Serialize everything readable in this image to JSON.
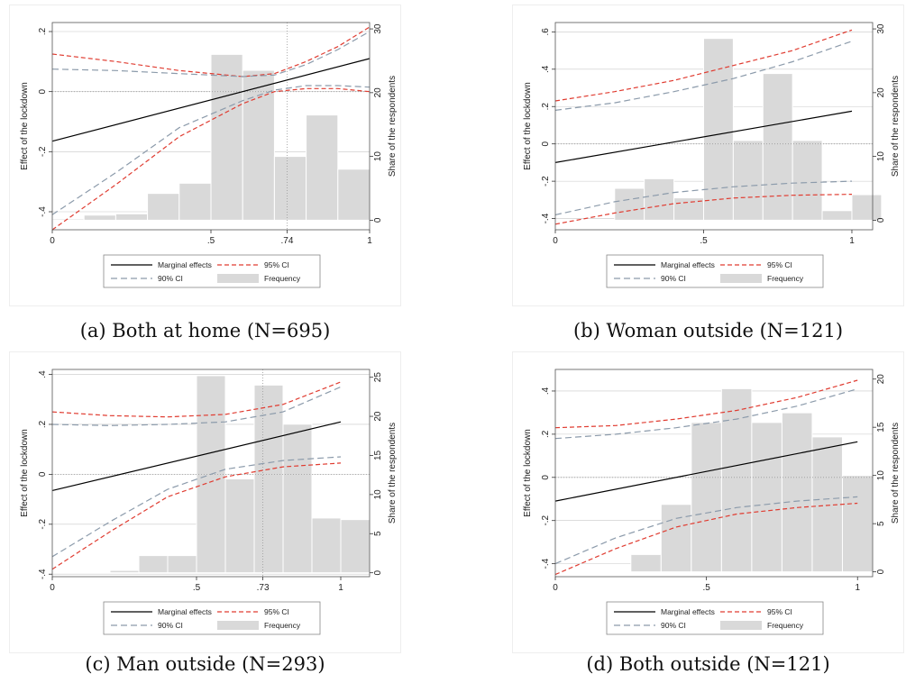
{
  "legend": {
    "marginal": "Marginal effects",
    "ci95": "95% CI",
    "ci90": "90% CI",
    "frequency": "Frequency"
  },
  "colors": {
    "marginal": "#000000",
    "ci95": "#e03c31",
    "ci90": "#8c9bab",
    "hist_fill": "#d9d9d9",
    "hist_stroke": "#ffffff",
    "frame": "#555555",
    "grid": "#c8c8c8"
  },
  "chart_data": [
    {
      "type": "line",
      "caption": "(a) Both at home (N=695)",
      "ylabel": "Effect of the lockdown",
      "y2label": "Share of the respondents",
      "xlim": [
        0,
        1
      ],
      "ylim": [
        -0.46,
        0.23
      ],
      "y2lim": [
        -1.5,
        31
      ],
      "xticks": [
        {
          "v": 0,
          "l": "0"
        },
        {
          "v": 0.5,
          "l": ".5"
        },
        {
          "v": 0.74,
          "l": ".74"
        },
        {
          "v": 1,
          "l": "1"
        }
      ],
      "yticks": [
        {
          "v": -0.4,
          "l": "-.4"
        },
        {
          "v": -0.2,
          "l": "-.2"
        },
        {
          "v": 0,
          "l": "0"
        },
        {
          "v": 0.2,
          "l": ".2"
        }
      ],
      "y2ticks": [
        {
          "v": 0,
          "l": "0"
        },
        {
          "v": 10,
          "l": "10"
        },
        {
          "v": 20,
          "l": "20"
        },
        {
          "v": 30,
          "l": "30"
        }
      ],
      "vline": 0.74,
      "histogram": {
        "edges": [
          0.0,
          0.1,
          0.2,
          0.3,
          0.4,
          0.5,
          0.6,
          0.7,
          0.8,
          0.9,
          1.0
        ],
        "values": [
          0.2,
          0.8,
          1.0,
          4.2,
          5.8,
          26.0,
          23.5,
          10.0,
          16.5,
          8.0
        ]
      },
      "series": [
        {
          "name": "Marginal effects",
          "kind": "marginal",
          "x": [
            0,
            1
          ],
          "y": [
            -0.165,
            0.11
          ]
        },
        {
          "name": "95% CI",
          "kind": "ci95",
          "x": [
            0,
            0.2,
            0.4,
            0.6,
            0.7,
            0.8,
            0.9,
            1
          ],
          "y": [
            0.125,
            0.1,
            0.07,
            0.05,
            0.06,
            0.1,
            0.15,
            0.215
          ]
        },
        {
          "name": "95% CI",
          "kind": "ci95",
          "x": [
            0,
            0.2,
            0.4,
            0.6,
            0.7,
            0.8,
            0.9,
            1
          ],
          "y": [
            -0.46,
            -0.31,
            -0.15,
            -0.04,
            0.0,
            0.01,
            0.01,
            0.0
          ]
        },
        {
          "name": "90% CI",
          "kind": "ci90",
          "x": [
            0,
            0.2,
            0.4,
            0.6,
            0.7,
            0.8,
            0.9,
            1
          ],
          "y": [
            0.075,
            0.07,
            0.06,
            0.05,
            0.055,
            0.09,
            0.14,
            0.2
          ]
        },
        {
          "name": "90% CI",
          "kind": "ci90",
          "x": [
            0,
            0.2,
            0.4,
            0.6,
            0.7,
            0.8,
            0.9,
            1
          ],
          "y": [
            -0.41,
            -0.27,
            -0.12,
            -0.03,
            0.005,
            0.02,
            0.02,
            0.015
          ]
        }
      ]
    },
    {
      "type": "line",
      "caption": "(b) Woman outside (N=121)",
      "ylabel": "Effect of the lockdown",
      "y2label": "Share of the respondents",
      "xlim": [
        0,
        1.07
      ],
      "ylim": [
        -0.46,
        0.65
      ],
      "y2lim": [
        -1.5,
        31
      ],
      "xticks": [
        {
          "v": 0,
          "l": "0"
        },
        {
          "v": 0.5,
          "l": ".5"
        },
        {
          "v": 1,
          "l": "1"
        }
      ],
      "yticks": [
        {
          "v": -0.4,
          "l": "-.4"
        },
        {
          "v": -0.2,
          "l": "-.2"
        },
        {
          "v": 0,
          "l": "0"
        },
        {
          "v": 0.2,
          "l": ".2"
        },
        {
          "v": 0.4,
          "l": ".4"
        },
        {
          "v": 0.6,
          "l": ".6"
        }
      ],
      "y2ticks": [
        {
          "v": 0,
          "l": "0"
        },
        {
          "v": 10,
          "l": "10"
        },
        {
          "v": 20,
          "l": "20"
        },
        {
          "v": 30,
          "l": "30"
        }
      ],
      "vline": null,
      "histogram": {
        "edges": [
          0.2,
          0.3,
          0.4,
          0.5,
          0.6,
          0.7,
          0.8,
          0.9,
          1.0,
          1.1
        ],
        "values": [
          5.0,
          6.5,
          3.5,
          28.5,
          12.5,
          23.0,
          12.5,
          1.5,
          4.0
        ]
      },
      "series": [
        {
          "name": "Marginal effects",
          "kind": "marginal",
          "x": [
            0,
            1
          ],
          "y": [
            -0.1,
            0.175
          ]
        },
        {
          "name": "95% CI",
          "kind": "ci95",
          "x": [
            0,
            0.2,
            0.4,
            0.6,
            0.8,
            1
          ],
          "y": [
            0.23,
            0.28,
            0.34,
            0.42,
            0.5,
            0.61
          ]
        },
        {
          "name": "95% CI",
          "kind": "ci95",
          "x": [
            0,
            0.2,
            0.4,
            0.6,
            0.8,
            1
          ],
          "y": [
            -0.43,
            -0.37,
            -0.32,
            -0.29,
            -0.275,
            -0.27
          ]
        },
        {
          "name": "90% CI",
          "kind": "ci90",
          "x": [
            0,
            0.2,
            0.4,
            0.6,
            0.8,
            1
          ],
          "y": [
            0.18,
            0.22,
            0.28,
            0.35,
            0.44,
            0.55
          ]
        },
        {
          "name": "90% CI",
          "kind": "ci90",
          "x": [
            0,
            0.2,
            0.4,
            0.6,
            0.8,
            1
          ],
          "y": [
            -0.38,
            -0.31,
            -0.26,
            -0.23,
            -0.21,
            -0.2
          ]
        }
      ]
    },
    {
      "type": "line",
      "caption": "(c) Man outside (N=293)",
      "ylabel": "Effect of the lockdown",
      "y2label": "Share of the respondents",
      "xlim": [
        0,
        1.1
      ],
      "ylim": [
        -0.41,
        0.42
      ],
      "y2lim": [
        -0.5,
        26
      ],
      "xticks": [
        {
          "v": 0,
          "l": "0"
        },
        {
          "v": 0.5,
          "l": ".5"
        },
        {
          "v": 0.73,
          "l": ".73"
        },
        {
          "v": 1,
          "l": "1"
        }
      ],
      "yticks": [
        {
          "v": -0.4,
          "l": "-.4"
        },
        {
          "v": -0.2,
          "l": "-.2"
        },
        {
          "v": 0,
          "l": "0"
        },
        {
          "v": 0.2,
          "l": ".2"
        },
        {
          "v": 0.4,
          "l": ".4"
        }
      ],
      "y2ticks": [
        {
          "v": 0,
          "l": "0"
        },
        {
          "v": 5,
          "l": "5"
        },
        {
          "v": 10,
          "l": "10"
        },
        {
          "v": 15,
          "l": "15"
        },
        {
          "v": 20,
          "l": "20"
        },
        {
          "v": 25,
          "l": "25"
        }
      ],
      "vline": 0.73,
      "histogram": {
        "edges": [
          0.2,
          0.3,
          0.4,
          0.5,
          0.6,
          0.7,
          0.8,
          0.9,
          1.0,
          1.1
        ],
        "values": [
          0.3,
          2.2,
          2.2,
          25.2,
          12.0,
          24.0,
          19.0,
          7.0,
          6.8
        ]
      },
      "series": [
        {
          "name": "Marginal effects",
          "kind": "marginal",
          "x": [
            0,
            1
          ],
          "y": [
            -0.065,
            0.21
          ]
        },
        {
          "name": "95% CI",
          "kind": "ci95",
          "x": [
            0,
            0.2,
            0.4,
            0.6,
            0.8,
            1
          ],
          "y": [
            0.25,
            0.235,
            0.23,
            0.24,
            0.28,
            0.37
          ]
        },
        {
          "name": "95% CI",
          "kind": "ci95",
          "x": [
            0,
            0.2,
            0.4,
            0.6,
            0.8,
            1
          ],
          "y": [
            -0.38,
            -0.23,
            -0.09,
            -0.01,
            0.03,
            0.045
          ]
        },
        {
          "name": "90% CI",
          "kind": "ci90",
          "x": [
            0,
            0.2,
            0.4,
            0.6,
            0.8,
            1
          ],
          "y": [
            0.2,
            0.195,
            0.2,
            0.21,
            0.25,
            0.35
          ]
        },
        {
          "name": "90% CI",
          "kind": "ci90",
          "x": [
            0,
            0.2,
            0.4,
            0.6,
            0.8,
            1
          ],
          "y": [
            -0.33,
            -0.19,
            -0.06,
            0.02,
            0.055,
            0.07
          ]
        }
      ]
    },
    {
      "type": "line",
      "caption": "(d) Both outside (N=121)",
      "ylabel": "Effect of the lockdown",
      "y2label": "Share of the respondents",
      "xlim": [
        0,
        1.05
      ],
      "ylim": [
        -0.46,
        0.5
      ],
      "y2lim": [
        -0.5,
        21
      ],
      "xticks": [
        {
          "v": 0,
          "l": "0"
        },
        {
          "v": 0.5,
          "l": ".5"
        },
        {
          "v": 1,
          "l": "1"
        }
      ],
      "yticks": [
        {
          "v": -0.4,
          "l": "-.4"
        },
        {
          "v": -0.2,
          "l": "-.2"
        },
        {
          "v": 0,
          "l": "0"
        },
        {
          "v": 0.2,
          "l": ".2"
        },
        {
          "v": 0.4,
          "l": ".4"
        }
      ],
      "y2ticks": [
        {
          "v": 0,
          "l": "0"
        },
        {
          "v": 5,
          "l": "5"
        },
        {
          "v": 10,
          "l": "10"
        },
        {
          "v": 15,
          "l": "15"
        },
        {
          "v": 20,
          "l": "20"
        }
      ],
      "vline": null,
      "histogram": {
        "edges": [
          0.25,
          0.35,
          0.45,
          0.55,
          0.65,
          0.75,
          0.85,
          0.95,
          1.05
        ],
        "values": [
          1.8,
          7.0,
          15.5,
          19.0,
          15.5,
          16.5,
          14.0,
          10.0
        ]
      },
      "series": [
        {
          "name": "Marginal effects",
          "kind": "marginal",
          "x": [
            0,
            1
          ],
          "y": [
            -0.11,
            0.165
          ]
        },
        {
          "name": "95% CI",
          "kind": "ci95",
          "x": [
            0,
            0.2,
            0.4,
            0.6,
            0.8,
            1
          ],
          "y": [
            0.23,
            0.24,
            0.27,
            0.31,
            0.37,
            0.45
          ]
        },
        {
          "name": "95% CI",
          "kind": "ci95",
          "x": [
            0,
            0.2,
            0.4,
            0.6,
            0.8,
            1
          ],
          "y": [
            -0.45,
            -0.33,
            -0.23,
            -0.17,
            -0.14,
            -0.12
          ]
        },
        {
          "name": "90% CI",
          "kind": "ci90",
          "x": [
            0,
            0.2,
            0.4,
            0.6,
            0.8,
            1
          ],
          "y": [
            0.18,
            0.2,
            0.23,
            0.27,
            0.33,
            0.41
          ]
        },
        {
          "name": "90% CI",
          "kind": "ci90",
          "x": [
            0,
            0.2,
            0.4,
            0.6,
            0.8,
            1
          ],
          "y": [
            -0.4,
            -0.28,
            -0.19,
            -0.14,
            -0.11,
            -0.09
          ]
        }
      ]
    }
  ]
}
